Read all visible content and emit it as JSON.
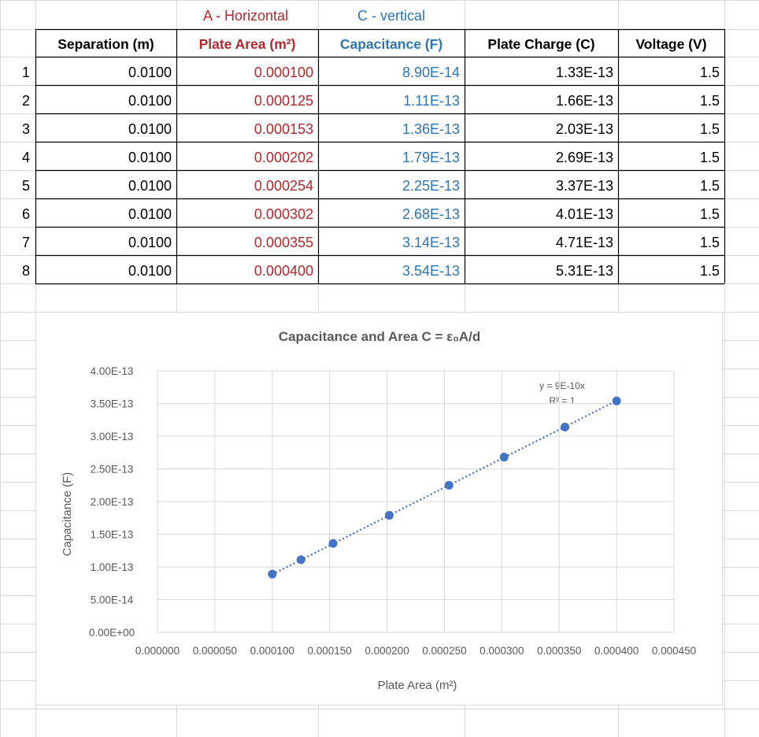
{
  "table": {
    "group_headers": [
      "A - Horizontal",
      "C - vertical"
    ],
    "columns": [
      "Separation (m)",
      "Plate Area (m²)",
      "Capacitance (F)",
      "Plate Charge (C)",
      "Voltage (V)"
    ],
    "row_numbers": [
      "1",
      "2",
      "3",
      "4",
      "5",
      "6",
      "7",
      "8"
    ],
    "rows": [
      [
        "0.0100",
        "0.000100",
        "8.90E-14",
        "1.33E-13",
        "1.5"
      ],
      [
        "0.0100",
        "0.000125",
        "1.11E-13",
        "1.66E-13",
        "1.5"
      ],
      [
        "0.0100",
        "0.000153",
        "1.36E-13",
        "2.03E-13",
        "1.5"
      ],
      [
        "0.0100",
        "0.000202",
        "1.79E-13",
        "2.69E-13",
        "1.5"
      ],
      [
        "0.0100",
        "0.000254",
        "2.25E-13",
        "3.37E-13",
        "1.5"
      ],
      [
        "0.0100",
        "0.000302",
        "2.68E-13",
        "4.01E-13",
        "1.5"
      ],
      [
        "0.0100",
        "0.000355",
        "3.14E-13",
        "4.71E-13",
        "1.5"
      ],
      [
        "0.0100",
        "0.000400",
        "3.54E-13",
        "5.31E-13",
        "1.5"
      ]
    ]
  },
  "colors": {
    "area": "#b3282d",
    "capacitance": "#2e75b6",
    "marker": "#4472c4",
    "gridline": "#d9d9d9",
    "text": "#000000",
    "axis_text": "#595959"
  },
  "chart_data": {
    "type": "scatter",
    "title": "Capacitance and Area C = ε₀A/d",
    "xlabel": "Plate Area (m²)",
    "ylabel": "Capacitance (F)",
    "xlim": [
      0,
      0.00045
    ],
    "ylim": [
      0,
      4e-13
    ],
    "grid": true,
    "x_ticks": [
      "0.000000",
      "0.000050",
      "0.000100",
      "0.000150",
      "0.000200",
      "0.000250",
      "0.000300",
      "0.000350",
      "0.000400",
      "0.000450"
    ],
    "y_ticks": [
      "0.00E+00",
      "5.00E-14",
      "1.00E-13",
      "1.50E-13",
      "2.00E-13",
      "2.50E-13",
      "3.00E-13",
      "3.50E-13",
      "4.00E-13"
    ],
    "x": [
      0.0001,
      0.000125,
      0.000153,
      0.000202,
      0.000254,
      0.000302,
      0.000355,
      0.0004
    ],
    "y": [
      8.9e-14,
      1.11e-13,
      1.36e-13,
      1.79e-13,
      2.25e-13,
      2.68e-13,
      3.14e-13,
      3.54e-13
    ],
    "trendline": {
      "type": "linear",
      "style": "dotted",
      "equation": "y = 9E-10x",
      "r_squared": "R² = 1"
    }
  }
}
